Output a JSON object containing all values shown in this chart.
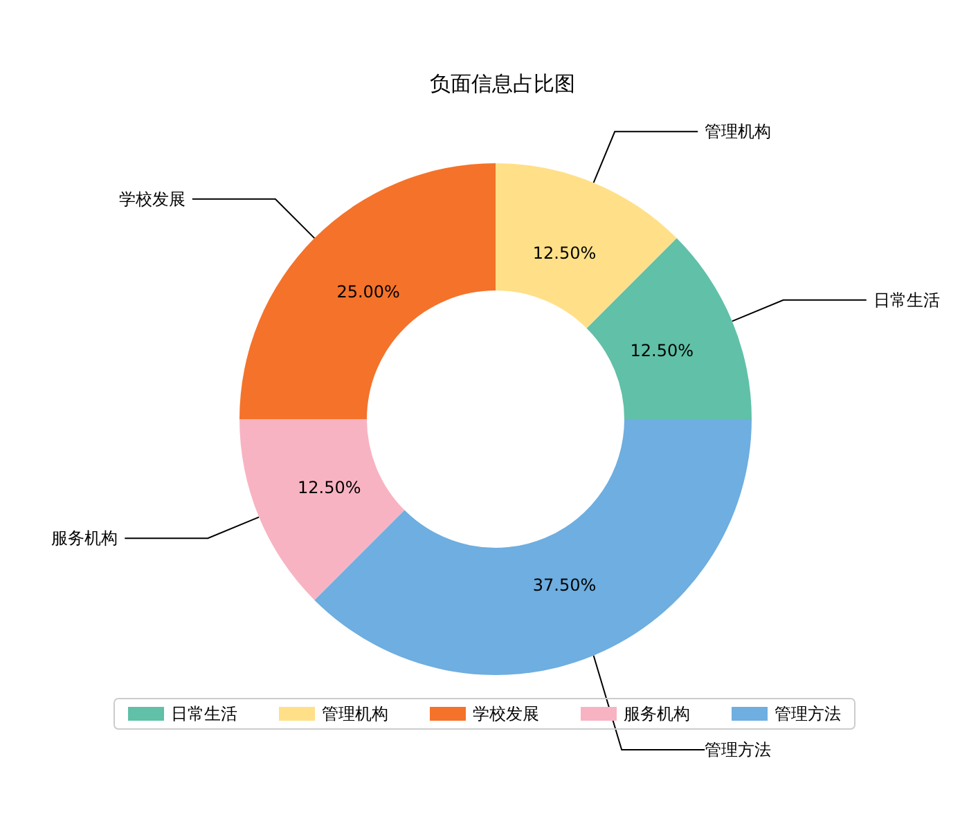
{
  "chart_data": {
    "type": "donut",
    "title": "负面信息占比图",
    "categories": [
      "日常生活",
      "管理机构",
      "学校发展",
      "服务机构",
      "管理方法"
    ],
    "values": [
      12.5,
      12.5,
      25,
      12.5,
      37.5
    ],
    "value_labels": [
      "12.50%",
      "12.50%",
      "25.00%",
      "12.50%",
      "37.50%"
    ],
    "colors": [
      "#60c0a8",
      "#ffe088",
      "#f5722a",
      "#f8b3c2",
      "#6eaee0"
    ],
    "legend": "bottom"
  }
}
